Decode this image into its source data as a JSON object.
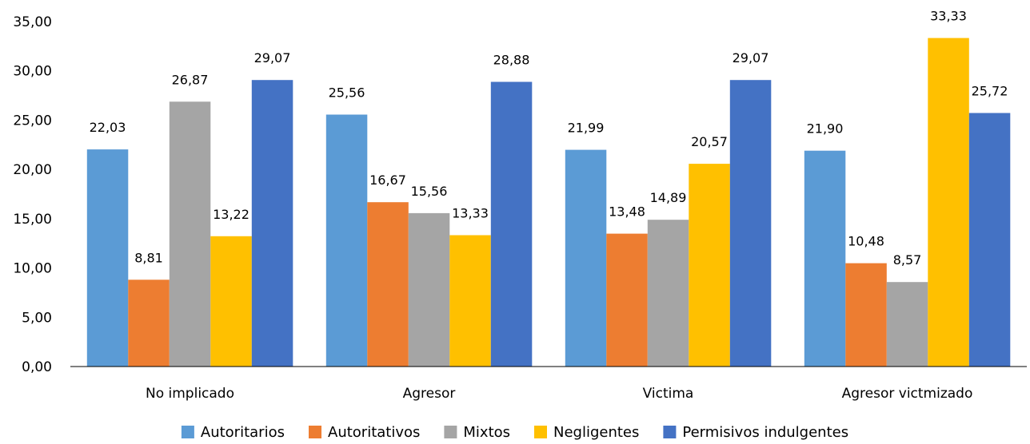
{
  "chart_data": {
    "type": "bar",
    "title": "",
    "xlabel": "",
    "ylabel": "",
    "categories": [
      "No implicado",
      "Agresor",
      "Victima",
      "Agresor victmizado"
    ],
    "series": [
      {
        "name": "Autoritarios",
        "color": "#5B9BD5",
        "values": [
          22.03,
          25.56,
          21.99,
          21.9
        ],
        "labels": [
          "22,03",
          "25,56",
          "21,99",
          "21,90"
        ]
      },
      {
        "name": "Autoritativos",
        "color": "#ED7D31",
        "values": [
          8.81,
          16.67,
          13.48,
          10.48
        ],
        "labels": [
          "8,81",
          "16,67",
          "13,48",
          "10,48"
        ]
      },
      {
        "name": "Mixtos",
        "color": "#A5A5A5",
        "values": [
          26.87,
          15.56,
          14.89,
          8.57
        ],
        "labels": [
          "26,87",
          "15,56",
          "14,89",
          "8,57"
        ]
      },
      {
        "name": "Negligentes",
        "color": "#FFC000",
        "values": [
          13.22,
          13.33,
          20.57,
          33.33
        ],
        "labels": [
          "13,22",
          "13,33",
          "20,57",
          "33,33"
        ]
      },
      {
        "name": "Permisivos indulgentes",
        "color": "#4472C4",
        "values": [
          29.07,
          28.88,
          29.07,
          25.72
        ],
        "labels": [
          "29,07",
          "28,88",
          "29,07",
          "25,72"
        ]
      }
    ],
    "ylim": [
      0,
      35
    ],
    "yticks": [
      0,
      5,
      10,
      15,
      20,
      25,
      30,
      35
    ],
    "ytick_labels": [
      "0,00",
      "5,00",
      "10,00",
      "15,00",
      "20,00",
      "25,00",
      "30,00",
      "35,00"
    ],
    "grid": false,
    "legend_position": "bottom"
  }
}
